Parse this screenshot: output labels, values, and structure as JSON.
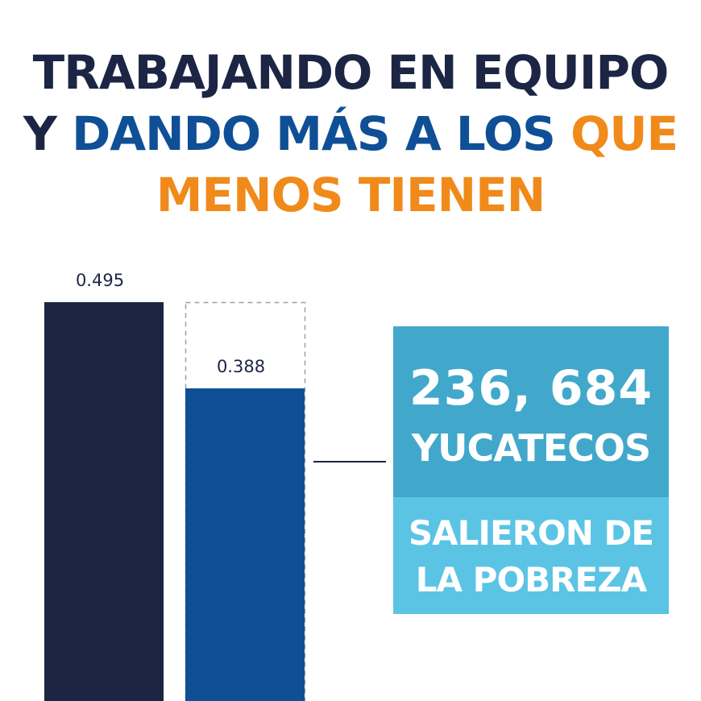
{
  "headline": {
    "line1": "TRABAJANDO EN EQUIPO",
    "line2_part1": "Y",
    "line2_part2": "DANDO MÁS A LOS",
    "line2_part3": "QUE",
    "line3": "MENOS TIENEN"
  },
  "callout": {
    "number": "236, 684",
    "label": "YUCATECOS",
    "sub_line1": "SALIERON DE",
    "sub_line2": "LA POBREZA"
  },
  "colors": {
    "navy": "#1c2544",
    "blue": "#0f4f96",
    "orange": "#f08a1a",
    "callout_top": "#41a8cb",
    "callout_bottom": "#5bc4e4"
  },
  "chart_data": {
    "type": "bar",
    "categories": [
      "",
      ""
    ],
    "values": [
      0.495,
      0.388
    ],
    "value_labels": [
      "0.495",
      "0.388"
    ],
    "bar_colors": [
      "#1c2544",
      "#0f4f96"
    ],
    "ylim": [
      0,
      0.5
    ],
    "grid": false,
    "title": "",
    "xlabel": "",
    "ylabel": ""
  }
}
